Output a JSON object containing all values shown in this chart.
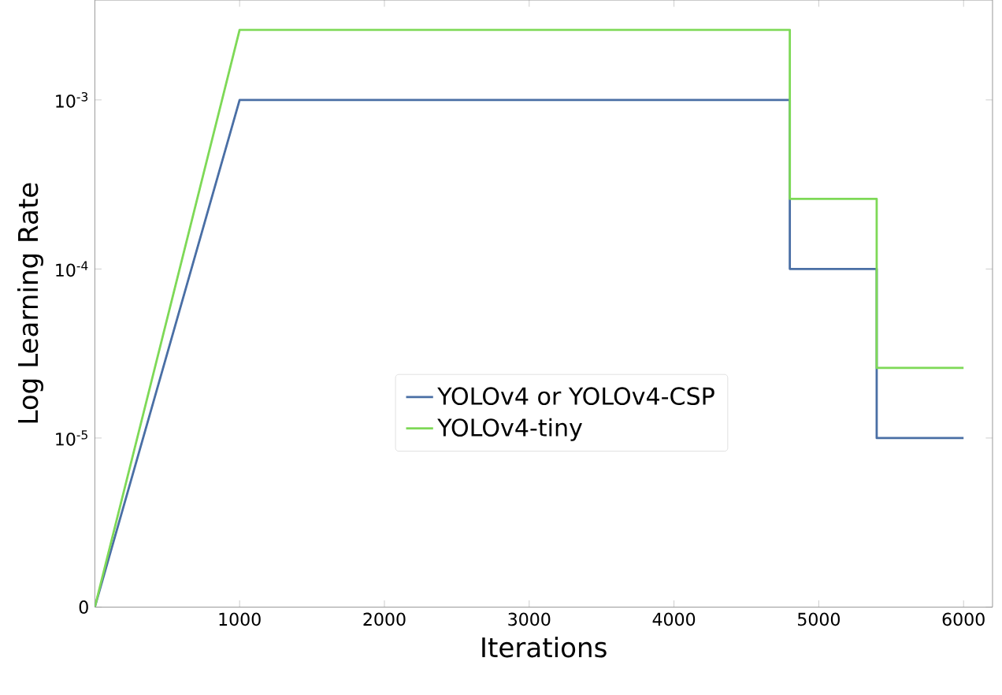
{
  "chart_data": {
    "type": "line",
    "xlabel": "Iterations",
    "ylabel": "Log Learning Rate",
    "log": "y",
    "xlim": [
      0,
      6200
    ],
    "xticks": [
      1000,
      2000,
      3000,
      4000,
      5000,
      6000
    ],
    "ylim": [
      1e-06,
      0.0039
    ],
    "yticks": [
      {
        "value": 1e-06,
        "label": "0"
      },
      {
        "value": 1e-05,
        "label": "10$^{-5}$"
      },
      {
        "value": 0.0001,
        "label": "10$^{-4}$"
      },
      {
        "value": 0.001,
        "label": "10$^{-3}$"
      }
    ],
    "legend": "center",
    "grid": false,
    "marker": "none",
    "line_style": "solid",
    "series": [
      {
        "name": "YOLOv4 or YOLOv4-CSP",
        "color": "#4a6fa5",
        "x": [
          0,
          1000,
          4800,
          4800,
          5400,
          5400,
          6000
        ],
        "values": [
          1e-06,
          0.001,
          0.001,
          0.0001,
          0.0001,
          1e-05,
          1e-05
        ]
      },
      {
        "name": "YOLOv4-tiny",
        "color": "#7ed957",
        "x": [
          0,
          1000,
          4800,
          4800,
          5400,
          5400,
          6000
        ],
        "values": [
          1e-06,
          0.0026,
          0.0026,
          0.00026,
          0.00026,
          2.6e-05,
          2.6e-05
        ]
      }
    ]
  }
}
